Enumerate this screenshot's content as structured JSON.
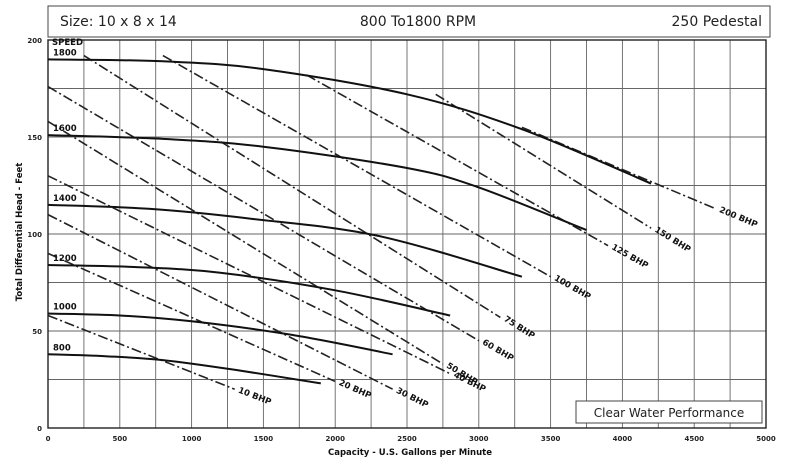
{
  "header": {
    "size": "Size: 10 x 8 x 14",
    "rpm": "800 To1800 RPM",
    "pedestal": "250 Pedestal"
  },
  "badge": "Clear Water Performance",
  "chart_data": {
    "type": "line",
    "title": "",
    "xlabel": "Capacity - U.S. Gallons per Minute",
    "ylabel": "Total Differential Head - Feet",
    "xlim": [
      0,
      5000
    ],
    "ylim": [
      0,
      200
    ],
    "x_ticks": [
      0,
      500,
      1000,
      1500,
      2000,
      2500,
      3000,
      3500,
      4000,
      4500,
      5000
    ],
    "y_ticks": [
      0,
      50,
      100,
      150,
      200
    ],
    "grid": true,
    "speed_header": "SPEED",
    "speed_curves": [
      {
        "name": "1800",
        "x": [
          0,
          800,
          1500,
          2500,
          3300,
          4200
        ],
        "y": [
          190,
          189,
          185,
          172,
          154,
          126
        ]
      },
      {
        "name": "1600",
        "x": [
          0,
          800,
          1500,
          2500,
          3000,
          3750
        ],
        "y": [
          151,
          149,
          145,
          134,
          124,
          102
        ]
      },
      {
        "name": "1400",
        "x": [
          0,
          700,
          1400,
          2300,
          3300
        ],
        "y": [
          115,
          113,
          108,
          99,
          78
        ]
      },
      {
        "name": "1200",
        "x": [
          0,
          600,
          1200,
          2000,
          2800
        ],
        "y": [
          84,
          83,
          80,
          71,
          58
        ]
      },
      {
        "name": "1000",
        "x": [
          0,
          500,
          1000,
          1700,
          2400
        ],
        "y": [
          59,
          58,
          55,
          48,
          38
        ]
      },
      {
        "name": "800",
        "x": [
          0,
          400,
          800,
          1300,
          1900
        ],
        "y": [
          38,
          37,
          35,
          30,
          23
        ]
      }
    ],
    "bhp_lines": [
      {
        "name": "10 BHP",
        "x": [
          0,
          1300
        ],
        "y": [
          58,
          20
        ]
      },
      {
        "name": "20 BHP",
        "x": [
          0,
          2000
        ],
        "y": [
          90,
          24
        ]
      },
      {
        "name": "30 BHP",
        "x": [
          0,
          2400
        ],
        "y": [
          110,
          20
        ]
      },
      {
        "name": "40 BHP",
        "x": [
          0,
          2800
        ],
        "y": [
          130,
          28
        ]
      },
      {
        "name": "50 BHP",
        "x": [
          0,
          2750
        ],
        "y": [
          158,
          33
        ]
      },
      {
        "name": "60 BHP",
        "x": [
          0,
          3000
        ],
        "y": [
          176,
          45
        ]
      },
      {
        "name": "75 BHP",
        "x": [
          250,
          3150
        ],
        "y": [
          192,
          57
        ]
      },
      {
        "name": "100 BHP",
        "x": [
          800,
          3500
        ],
        "y": [
          192,
          78
        ]
      },
      {
        "name": "125 BHP",
        "x": [
          1800,
          3900
        ],
        "y": [
          182,
          94
        ]
      },
      {
        "name": "150 BHP",
        "x": [
          2700,
          4200
        ],
        "y": [
          172,
          103
        ]
      },
      {
        "name": "200 BHP",
        "x": [
          3300,
          4650
        ],
        "y": [
          155,
          113
        ]
      }
    ]
  }
}
